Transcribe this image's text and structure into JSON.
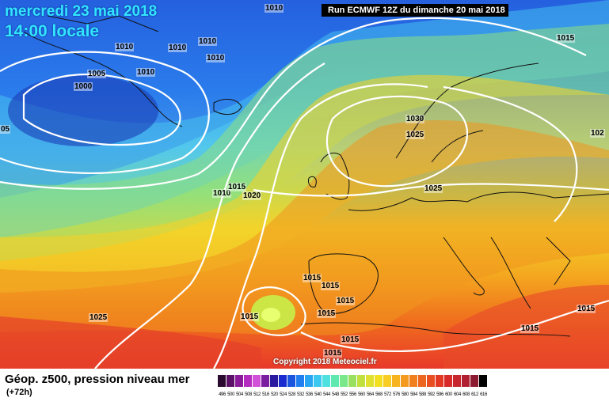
{
  "header": {
    "date": "mercredi 23 mai 2018",
    "time": "14:00 locale",
    "run": "Run ECMWF 12Z du dimanche 20 mai 2018"
  },
  "copyright": "Copyright 2018 Meteociel.fr",
  "caption": {
    "main": "Géop. z500, pression niveau mer",
    "sub": "(+72h)"
  },
  "isobar_labels": [
    "1010",
    "1010",
    "1010",
    "1010",
    "1010",
    "1005",
    "1010",
    "1000",
    "05",
    "1015",
    "1030",
    "1025",
    "102",
    "1010",
    "1015",
    "1020",
    "1025",
    "1015",
    "1015",
    "1015",
    "1015",
    "1015",
    "1025",
    "1015",
    "1015",
    "1015",
    "1015"
  ],
  "scale": {
    "labels": [
      "496",
      "500",
      "504",
      "508",
      "512",
      "516",
      "520",
      "524",
      "528",
      "532",
      "536",
      "540",
      "544",
      "548",
      "552",
      "556",
      "560",
      "564",
      "568",
      "572",
      "576",
      "580",
      "584",
      "588",
      "592",
      "596",
      "600",
      "604",
      "608",
      "612",
      "616"
    ],
    "colors": [
      "#2a0a2e",
      "#5a1066",
      "#8a1a9a",
      "#b52bbf",
      "#d152d8",
      "#7a1fa0",
      "#2a1aa0",
      "#1a2bd0",
      "#1a55e0",
      "#1f7ff0",
      "#29a6f2",
      "#3ac8f0",
      "#4fe0e0",
      "#5fe8b0",
      "#7ae88a",
      "#9ae060",
      "#c0e040",
      "#e0e030",
      "#f2e020",
      "#f8cc20",
      "#f8b41e",
      "#f49a1e",
      "#f0801e",
      "#ec661f",
      "#e84e22",
      "#e23824",
      "#d82a28",
      "#c8262e",
      "#b02032",
      "#8c1a30",
      "#000000"
    ]
  }
}
